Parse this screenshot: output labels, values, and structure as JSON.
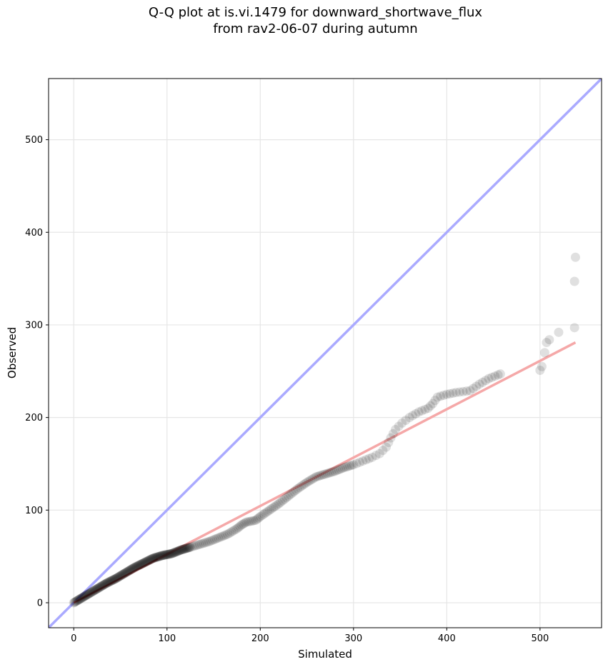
{
  "chart_data": {
    "type": "scatter",
    "title_line1": "Q-Q plot at is.vi.1479 for downward_shortwave_flux",
    "title_line2": "from rav2-06-07 during autumn",
    "xlabel": "Simulated",
    "ylabel": "Observed",
    "xlim": [
      -27,
      566
    ],
    "ylim": [
      -27,
      566
    ],
    "xticks": [
      0,
      100,
      200,
      300,
      400,
      500
    ],
    "yticks": [
      0,
      100,
      200,
      300,
      400,
      500
    ],
    "grid": true,
    "one_to_one_line_color": "#aaaaff",
    "fit_line": {
      "color": "#f5a8a8",
      "x": [
        0,
        538
      ],
      "y": [
        0,
        281
      ]
    },
    "point_color": "#000000",
    "anchor_points": [
      [
        0,
        0
      ],
      [
        5,
        3
      ],
      [
        15,
        9
      ],
      [
        25,
        15
      ],
      [
        35,
        21
      ],
      [
        45,
        26
      ],
      [
        55,
        32
      ],
      [
        65,
        38
      ],
      [
        75,
        43
      ],
      [
        85,
        48
      ],
      [
        95,
        51
      ],
      [
        105,
        53
      ],
      [
        115,
        57
      ],
      [
        125,
        60
      ],
      [
        135,
        63
      ],
      [
        145,
        66
      ],
      [
        155,
        70
      ],
      [
        165,
        74
      ],
      [
        175,
        80
      ],
      [
        180,
        84
      ],
      [
        185,
        87
      ],
      [
        195,
        89
      ],
      [
        200,
        93
      ],
      [
        210,
        100
      ],
      [
        220,
        107
      ],
      [
        230,
        115
      ],
      [
        240,
        123
      ],
      [
        250,
        130
      ],
      [
        260,
        136
      ],
      [
        270,
        139
      ],
      [
        280,
        142
      ],
      [
        290,
        146
      ],
      [
        300,
        149
      ],
      [
        310,
        153
      ],
      [
        320,
        157
      ],
      [
        328,
        161
      ],
      [
        335,
        168
      ],
      [
        340,
        178
      ],
      [
        345,
        187
      ],
      [
        352,
        194
      ],
      [
        360,
        200
      ],
      [
        370,
        206
      ],
      [
        380,
        210
      ],
      [
        385,
        215
      ],
      [
        390,
        222
      ],
      [
        400,
        225
      ],
      [
        410,
        227
      ],
      [
        425,
        229
      ],
      [
        435,
        236
      ],
      [
        445,
        242
      ],
      [
        455,
        246
      ],
      [
        460,
        248
      ]
    ],
    "tail_points": [
      [
        500,
        251
      ],
      [
        502,
        255
      ],
      [
        505,
        270
      ],
      [
        507,
        281
      ],
      [
        510,
        284
      ],
      [
        520,
        292
      ],
      [
        537,
        297
      ],
      [
        537,
        347
      ],
      [
        538,
        373
      ]
    ]
  }
}
